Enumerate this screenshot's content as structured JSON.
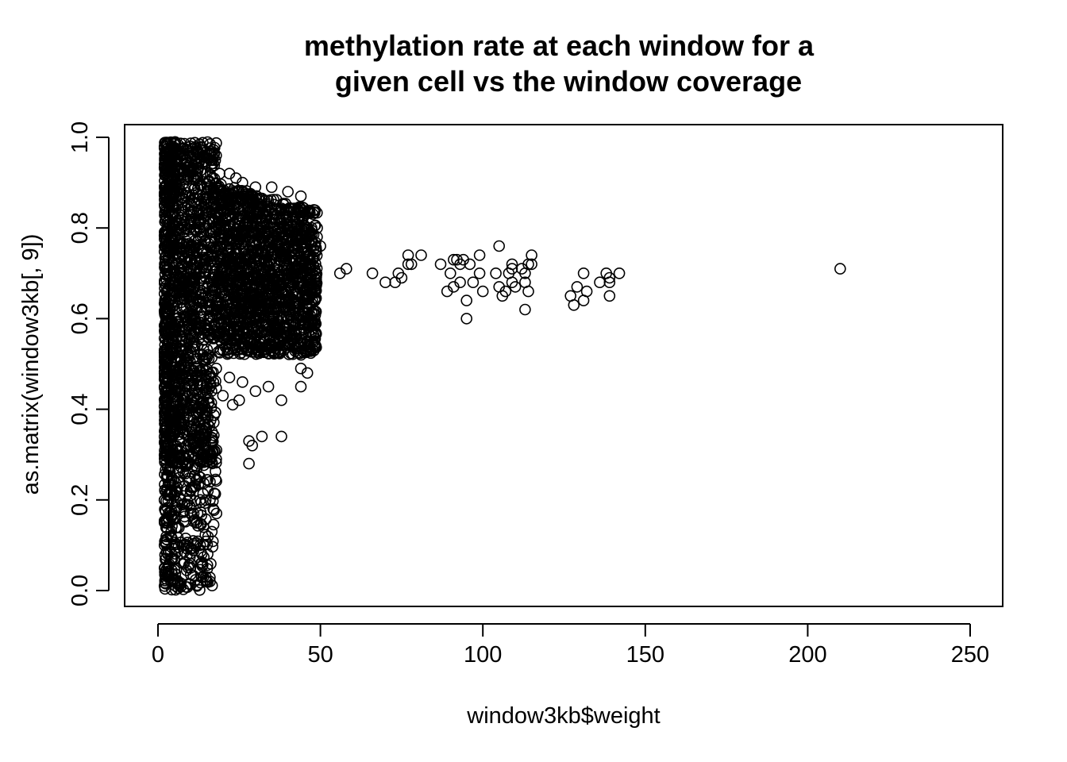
{
  "chart_data": {
    "type": "scatter",
    "title_lines": [
      "methylation rate at each window for a",
      "given cell vs the window coverage"
    ],
    "xlabel": "window3kb$weight",
    "ylabel": "as.matrix(window3kb[, 9])",
    "xlim": [
      -10,
      260
    ],
    "ylim": [
      -0.04,
      1.03
    ],
    "x_ticks": [
      0,
      50,
      100,
      150,
      200,
      250
    ],
    "x_tick_labels": [
      "0",
      "50",
      "100",
      "150",
      "200",
      "250"
    ],
    "y_ticks": [
      0.0,
      0.2,
      0.4,
      0.6,
      0.8,
      1.0
    ],
    "y_tick_labels": [
      "0.0",
      "0.2",
      "0.4",
      "0.6",
      "0.8",
      "1.0"
    ],
    "grid": false,
    "marker": "open-circle",
    "marker_color": "#000000",
    "dense_regions": [
      {
        "x_range": [
          2,
          18
        ],
        "y_range": [
          0.0,
          0.99
        ]
      },
      {
        "x_range": [
          18,
          49
        ],
        "y_range": [
          0.45,
          0.91
        ]
      }
    ],
    "points": [
      [
        2,
        0.98
      ],
      [
        3,
        0.97
      ],
      [
        5,
        0.985
      ],
      [
        7,
        0.975
      ],
      [
        9,
        0.97
      ],
      [
        10,
        0.98
      ],
      [
        12,
        0.97
      ],
      [
        16,
        0.965
      ],
      [
        17,
        0.955
      ],
      [
        19,
        0.92
      ],
      [
        22,
        0.92
      ],
      [
        24,
        0.91
      ],
      [
        26,
        0.9
      ],
      [
        30,
        0.89
      ],
      [
        35,
        0.89
      ],
      [
        40,
        0.88
      ],
      [
        44,
        0.87
      ],
      [
        48,
        0.84
      ],
      [
        49,
        0.8
      ],
      [
        50,
        0.76
      ],
      [
        2,
        0.2
      ],
      [
        2,
        0.15
      ],
      [
        2,
        0.1
      ],
      [
        2,
        0.05
      ],
      [
        2,
        0.01
      ],
      [
        3,
        0.25
      ],
      [
        3,
        0.16
      ],
      [
        3,
        0.08
      ],
      [
        3,
        0.03
      ],
      [
        4,
        0.22
      ],
      [
        4,
        0.12
      ],
      [
        4,
        0.02
      ],
      [
        5,
        0.07
      ],
      [
        6,
        0.14
      ],
      [
        6,
        0.26
      ],
      [
        7,
        0.2
      ],
      [
        8,
        0.1
      ],
      [
        9,
        0.19
      ],
      [
        9,
        0.28
      ],
      [
        10,
        0.05
      ],
      [
        10,
        0.22
      ],
      [
        11,
        0.17
      ],
      [
        11,
        0.3
      ],
      [
        12,
        0.01
      ],
      [
        12,
        0.15
      ],
      [
        13,
        0.1
      ],
      [
        13,
        0.25
      ],
      [
        14,
        0.03
      ],
      [
        15,
        0.02
      ],
      [
        16,
        0.02
      ],
      [
        16,
        0.2
      ],
      [
        16,
        0.24
      ],
      [
        16,
        0.3
      ],
      [
        17,
        0.18
      ],
      [
        18,
        0.17
      ],
      [
        18,
        0.31
      ],
      [
        14,
        0.14
      ],
      [
        13,
        0.2
      ],
      [
        12,
        0.27
      ],
      [
        15,
        0.35
      ],
      [
        20,
        0.43
      ],
      [
        23,
        0.41
      ],
      [
        25,
        0.42
      ],
      [
        28,
        0.33
      ],
      [
        29,
        0.32
      ],
      [
        28,
        0.28
      ],
      [
        32,
        0.34
      ],
      [
        38,
        0.34
      ],
      [
        38,
        0.42
      ],
      [
        44,
        0.45
      ],
      [
        44,
        0.49
      ],
      [
        46,
        0.48
      ],
      [
        22,
        0.47
      ],
      [
        26,
        0.46
      ],
      [
        30,
        0.44
      ],
      [
        34,
        0.45
      ],
      [
        56,
        0.7
      ],
      [
        58,
        0.71
      ],
      [
        66,
        0.7
      ],
      [
        70,
        0.68
      ],
      [
        73,
        0.68
      ],
      [
        74,
        0.7
      ],
      [
        75,
        0.69
      ],
      [
        77,
        0.72
      ],
      [
        78,
        0.72
      ],
      [
        77,
        0.74
      ],
      [
        81,
        0.74
      ],
      [
        87,
        0.72
      ],
      [
        89,
        0.66
      ],
      [
        90,
        0.7
      ],
      [
        91,
        0.73
      ],
      [
        92,
        0.73
      ],
      [
        91,
        0.67
      ],
      [
        93,
        0.72
      ],
      [
        93,
        0.68
      ],
      [
        94,
        0.73
      ],
      [
        95,
        0.64
      ],
      [
        95,
        0.6
      ],
      [
        96,
        0.72
      ],
      [
        97,
        0.68
      ],
      [
        99,
        0.7
      ],
      [
        99,
        0.74
      ],
      [
        100,
        0.66
      ],
      [
        104,
        0.7
      ],
      [
        105,
        0.76
      ],
      [
        105,
        0.67
      ],
      [
        106,
        0.65
      ],
      [
        107,
        0.66
      ],
      [
        108,
        0.7
      ],
      [
        109,
        0.72
      ],
      [
        109,
        0.71
      ],
      [
        109,
        0.68
      ],
      [
        110,
        0.67
      ],
      [
        112,
        0.71
      ],
      [
        113,
        0.62
      ],
      [
        113,
        0.7
      ],
      [
        113,
        0.68
      ],
      [
        114,
        0.72
      ],
      [
        114,
        0.66
      ],
      [
        115,
        0.72
      ],
      [
        115,
        0.74
      ],
      [
        127,
        0.65
      ],
      [
        128,
        0.63
      ],
      [
        129,
        0.67
      ],
      [
        131,
        0.64
      ],
      [
        131,
        0.7
      ],
      [
        132,
        0.66
      ],
      [
        136,
        0.68
      ],
      [
        138,
        0.7
      ],
      [
        139,
        0.69
      ],
      [
        139,
        0.68
      ],
      [
        139,
        0.65
      ],
      [
        142,
        0.7
      ],
      [
        210,
        0.71
      ]
    ]
  }
}
